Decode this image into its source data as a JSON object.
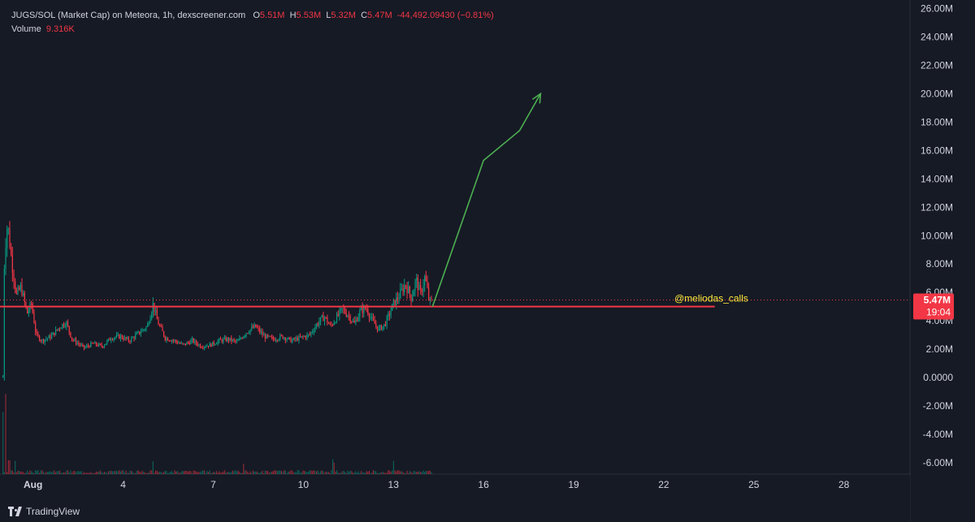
{
  "header": {
    "symbol": "JUGS/SOL (Market Cap) on Meteora, 1h, dexscreener.com",
    "o_label": "O",
    "o_value": "5.51M",
    "h_label": "H",
    "h_value": "5.53M",
    "l_label": "L",
    "l_value": "5.32M",
    "c_label": "C",
    "c_value": "5.47M",
    "change": "-44,492.09430 (−0.81%)",
    "volume_label": "Volume",
    "volume_value": "9.316K"
  },
  "price_tag": {
    "price": "5.47M",
    "countdown": "19:04"
  },
  "annotation": {
    "text": "@meliodas_calls"
  },
  "brand": {
    "name": "TradingView",
    "icon": "tradingview-logo-icon"
  },
  "colors": {
    "background": "#161a25",
    "up": "#089981",
    "down": "#f23645",
    "level_line": "#f23645",
    "arrow": "#4caf50",
    "annotation_text": "#ffeb3b",
    "axis_text": "#d1d4dc"
  },
  "chart_data": {
    "type": "candlestick",
    "y_axis": {
      "ticks": [
        "26.00M",
        "24.00M",
        "22.00M",
        "20.00M",
        "18.00M",
        "16.00M",
        "14.00M",
        "12.00M",
        "10.00M",
        "8.00M",
        "6.00M",
        "4.00M",
        "2.00M",
        "0.0000",
        "-2.00M",
        "-4.00M",
        "-6.00M"
      ],
      "range_millions": [
        -6.8,
        26.6
      ]
    },
    "x_axis": {
      "ticks": [
        "Aug",
        "4",
        "7",
        "10",
        "13",
        "16",
        "19",
        "22",
        "25",
        "28"
      ],
      "tick_days": [
        1,
        4,
        7,
        10,
        13,
        16,
        19,
        22,
        25,
        28
      ],
      "range_days": [
        -0.1,
        30.2
      ]
    },
    "level_line": {
      "value_millions": 5.0,
      "from_day": -0.1,
      "to_day": 23.7
    },
    "projection_arrow_points": [
      [
        14.3,
        5.0
      ],
      [
        16.0,
        15.3
      ],
      [
        17.2,
        17.4
      ],
      [
        17.9,
        20.0
      ]
    ],
    "price_path_millions": [
      [
        0.0,
        0.0
      ],
      [
        0.05,
        8.8
      ],
      [
        0.15,
        10.9
      ],
      [
        0.3,
        8.0
      ],
      [
        0.45,
        5.8
      ],
      [
        0.6,
        6.4
      ],
      [
        0.8,
        4.5
      ],
      [
        0.95,
        5.2
      ],
      [
        1.1,
        3.0
      ],
      [
        1.3,
        2.6
      ],
      [
        1.6,
        2.9
      ],
      [
        1.9,
        3.6
      ],
      [
        2.1,
        3.9
      ],
      [
        2.3,
        2.7
      ],
      [
        2.7,
        2.1
      ],
      [
        3.0,
        2.4
      ],
      [
        3.3,
        2.2
      ],
      [
        3.6,
        2.8
      ],
      [
        3.9,
        2.9
      ],
      [
        4.2,
        2.6
      ],
      [
        4.5,
        3.1
      ],
      [
        4.8,
        3.6
      ],
      [
        5.0,
        5.2
      ],
      [
        5.15,
        3.9
      ],
      [
        5.4,
        2.8
      ],
      [
        5.7,
        2.6
      ],
      [
        6.0,
        2.3
      ],
      [
        6.3,
        2.6
      ],
      [
        6.6,
        2.2
      ],
      [
        6.9,
        2.3
      ],
      [
        7.2,
        2.6
      ],
      [
        7.5,
        2.7
      ],
      [
        7.8,
        2.5
      ],
      [
        8.1,
        3.2
      ],
      [
        8.4,
        3.6
      ],
      [
        8.7,
        2.9
      ],
      [
        9.0,
        2.7
      ],
      [
        9.3,
        2.9
      ],
      [
        9.6,
        2.6
      ],
      [
        9.9,
        2.8
      ],
      [
        10.2,
        3.0
      ],
      [
        10.5,
        3.9
      ],
      [
        10.7,
        4.3
      ],
      [
        10.9,
        3.6
      ],
      [
        11.1,
        4.2
      ],
      [
        11.3,
        4.8
      ],
      [
        11.5,
        4.4
      ],
      [
        11.7,
        3.8
      ],
      [
        11.9,
        4.7
      ],
      [
        12.1,
        4.9
      ],
      [
        12.3,
        4.0
      ],
      [
        12.5,
        3.4
      ],
      [
        12.7,
        3.7
      ],
      [
        12.85,
        4.4
      ],
      [
        13.0,
        5.2
      ],
      [
        13.2,
        5.8
      ],
      [
        13.4,
        6.6
      ],
      [
        13.6,
        5.6
      ],
      [
        13.75,
        6.9
      ],
      [
        13.9,
        5.9
      ],
      [
        14.05,
        7.1
      ],
      [
        14.2,
        5.3
      ],
      [
        14.3,
        5.47
      ]
    ],
    "volume_spikes_day": [
      0.0,
      0.1,
      0.2,
      0.4,
      5.0,
      8.0,
      11.0,
      13.0
    ]
  }
}
